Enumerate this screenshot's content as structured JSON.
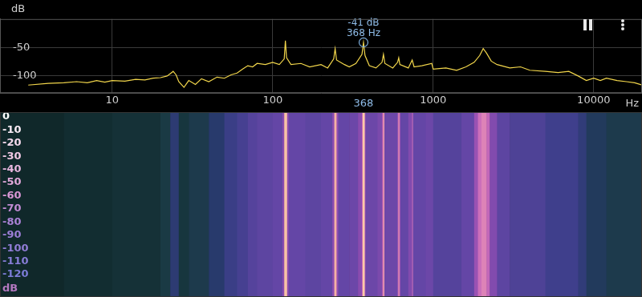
{
  "chart_data": [
    {
      "type": "line",
      "x": [
        3,
        4,
        5,
        6,
        7,
        8,
        9,
        10,
        12,
        14,
        16,
        18,
        20,
        22,
        24,
        25,
        26,
        28,
        30,
        33,
        36,
        40,
        45,
        50,
        55,
        60,
        65,
        70,
        75,
        80,
        90,
        100,
        110,
        118,
        120,
        122,
        130,
        150,
        170,
        200,
        220,
        240,
        245,
        250,
        280,
        300,
        330,
        360,
        368,
        376,
        400,
        440,
        480,
        490,
        500,
        560,
        600,
        610,
        620,
        700,
        740,
        760,
        850,
        980,
        1000,
        1200,
        1400,
        1600,
        1800,
        1950,
        2050,
        2150,
        2300,
        2500,
        3000,
        3500,
        4000,
        5000,
        6000,
        7000,
        8000,
        9000,
        10000,
        11000,
        12000,
        14000,
        16000,
        18000,
        20000
      ],
      "values": [
        -116,
        -113,
        -112,
        -110,
        -112,
        -108,
        -111,
        -108,
        -109,
        -106,
        -107,
        -104,
        -103,
        -100,
        -92,
        -98,
        -110,
        -120,
        -108,
        -115,
        -105,
        -110,
        -102,
        -104,
        -98,
        -95,
        -88,
        -82,
        -84,
        -78,
        -80,
        -76,
        -80,
        -70,
        -38,
        -68,
        -80,
        -78,
        -84,
        -80,
        -86,
        -70,
        -52,
        -72,
        -80,
        -84,
        -78,
        -62,
        -41,
        -64,
        -82,
        -86,
        -76,
        -62,
        -78,
        -86,
        -76,
        -68,
        -80,
        -86,
        -72,
        -84,
        -82,
        -78,
        -88,
        -86,
        -90,
        -84,
        -76,
        -64,
        -52,
        -60,
        -74,
        -80,
        -86,
        -84,
        -90,
        -92,
        -94,
        -92,
        -100,
        -108,
        -104,
        -108,
        -104,
        -108,
        -110,
        -112,
        -116
      ],
      "color": "#f2d64b",
      "log": "x",
      "grid": true,
      "xlim": [
        2,
        20000
      ],
      "xticks": [
        10,
        100,
        1000,
        10000
      ],
      "ylim": [
        -130,
        0
      ],
      "yticks": [
        -100,
        -50
      ],
      "xlabel": "Hz",
      "ylabel": "dB",
      "annotations": [
        {
          "x": 368,
          "y": -41,
          "text": [
            "-41 dB",
            "368 Hz"
          ],
          "axis_text": "368"
        }
      ]
    },
    {
      "type": "heatmap",
      "log": "x",
      "xlim": [
        2,
        20000
      ],
      "tick_labels": false,
      "bins": [
        2,
        5,
        10,
        20,
        23,
        26,
        30,
        40,
        50,
        60,
        70,
        80,
        100,
        115,
        118,
        123,
        126,
        160,
        200,
        235,
        242,
        250,
        256,
        300,
        340,
        360,
        364,
        374,
        378,
        450,
        480,
        487,
        497,
        600,
        606,
        616,
        625,
        700,
        740,
        748,
        900,
        1000,
        1500,
        1800,
        1900,
        2000,
        2150,
        2250,
        2500,
        3000,
        5000,
        8000,
        9000,
        12000,
        20000
      ],
      "cells": [
        [
          -118,
          -116,
          -114,
          -110,
          -98,
          -112,
          -108,
          -100,
          -92,
          -88,
          -84,
          -82,
          -80,
          -70,
          -25,
          -70,
          -80,
          -82,
          -80,
          -70,
          -30,
          -68,
          -80,
          -78,
          -70,
          -50,
          -22,
          -55,
          -78,
          -74,
          -60,
          -38,
          -78,
          -62,
          -42,
          -65,
          -80,
          -72,
          -50,
          -80,
          -78,
          -84,
          -80,
          -66,
          -52,
          -45,
          -55,
          -72,
          -82,
          -86,
          -90,
          -96,
          -104,
          -108
        ]
      ],
      "colorbar": {
        "range": [
          -120,
          0
        ],
        "ticks": [
          0,
          -10,
          -20,
          -30,
          -40,
          -50,
          -60,
          -70,
          -80,
          -90,
          -100,
          -110,
          -120
        ],
        "label": "dB"
      }
    }
  ]
}
